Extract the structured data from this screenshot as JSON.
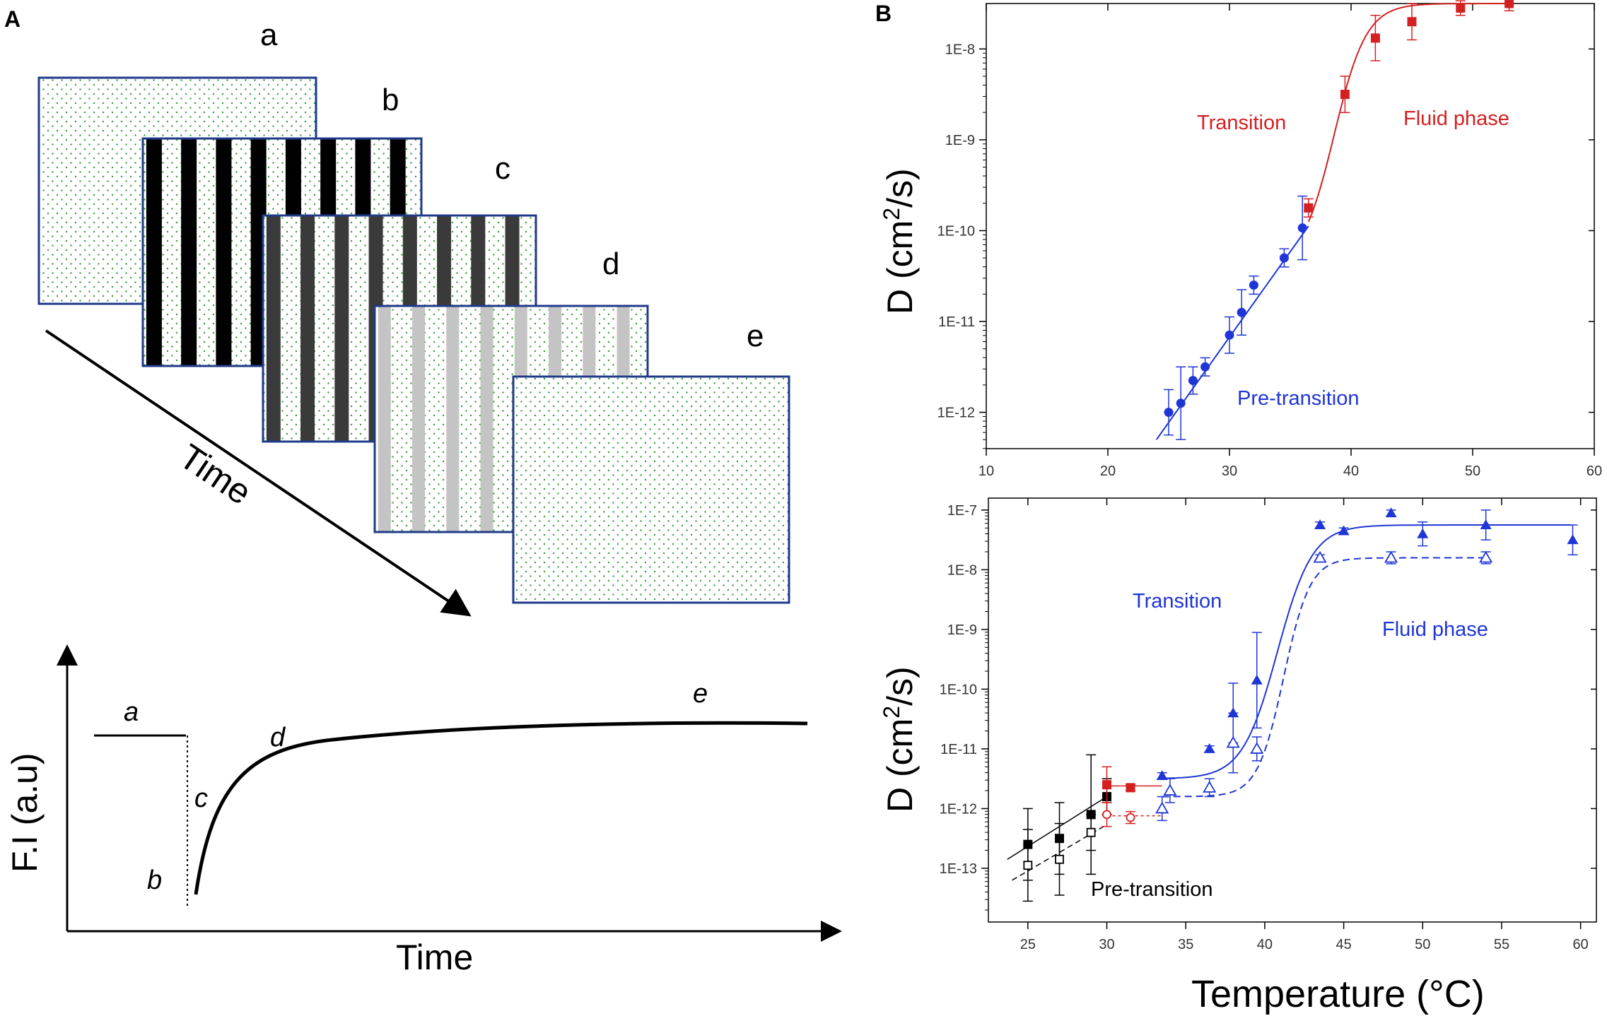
{
  "panel_labels": {
    "A": "A",
    "B": "B"
  },
  "frames": {
    "labels": [
      "a",
      "b",
      "c",
      "d",
      "e"
    ],
    "time_label": "Time",
    "stripe_colors": [
      "none",
      "#000000",
      "#3a3a3a",
      "#c4c4c4",
      "none"
    ],
    "dot_color": "#3a9a3a",
    "frame_border": "#1f3a8a"
  },
  "fi_curve": {
    "ylabel": "F.I (a.u)",
    "xlabel": "Time",
    "point_labels": [
      "a",
      "b",
      "c",
      "d",
      "e"
    ]
  },
  "chart_data": [
    {
      "type": "scatter",
      "title": "",
      "xlabel": "",
      "ylabel_main": "D (cm",
      "ylabel_sup": "2",
      "ylabel_tail": "/s)",
      "xlim": [
        10,
        60
      ],
      "ylim_log10": [
        -12.4,
        -7.5
      ],
      "xticks": [
        10,
        20,
        30,
        40,
        50,
        60
      ],
      "xtick_labels": [
        "10",
        "20",
        "30",
        "40",
        "50",
        "60"
      ],
      "yticks_log10": [
        -12,
        -11,
        -10,
        -9,
        -8
      ],
      "ytick_labels": [
        "1E-12",
        "1E-11",
        "1E-10",
        "1E-9",
        "1E-8"
      ],
      "series": [
        {
          "name": "Pre-transition",
          "color": "#1f35d6",
          "marker": "circle",
          "x": [
            25,
            26,
            27,
            28,
            30,
            31,
            32,
            34.5,
            36
          ],
          "y_log10": [
            -12.0,
            -11.9,
            -11.65,
            -11.5,
            -11.15,
            -10.9,
            -10.6,
            -10.3,
            -9.97
          ],
          "err_log10": [
            0.25,
            0.4,
            0.15,
            0.1,
            0.2,
            0.25,
            0.1,
            0.1,
            0.35
          ],
          "fit_x": [
            24,
            36.5
          ],
          "fit_log10": [
            -12.3,
            -9.95
          ]
        },
        {
          "name": "Fluid phase",
          "color": "#d42020",
          "marker": "square",
          "x": [
            36.5,
            39.5,
            42,
            45,
            49,
            53
          ],
          "y_log10": [
            -9.75,
            -8.5,
            -7.88,
            -7.7,
            -7.55,
            -7.5
          ],
          "err_log10": [
            0.1,
            0.2,
            0.25,
            0.2,
            0.08,
            0.08
          ],
          "fit": "sigmoid"
        }
      ],
      "annotations": [
        {
          "text": "Transition",
          "color": "#d42020"
        },
        {
          "text": "Fluid phase",
          "color": "#d42020"
        },
        {
          "text": "Pre-transition",
          "color": "#1f35d6"
        }
      ]
    },
    {
      "type": "scatter",
      "title": "",
      "xlabel": "Temperature (°C)",
      "xlabel_main": "Temperature (",
      "xlabel_unit": "°C)",
      "ylabel_main": "D (cm",
      "ylabel_sup": "2",
      "ylabel_tail": "/s)",
      "xlim": [
        22.5,
        61
      ],
      "ylim_log10": [
        -13.9,
        -6.8
      ],
      "xticks": [
        25,
        30,
        35,
        40,
        45,
        50,
        55,
        60
      ],
      "xtick_labels": [
        "25",
        "30",
        "35",
        "40",
        "45",
        "50",
        "55",
        "60"
      ],
      "yticks_log10": [
        -13,
        -12,
        -11,
        -10,
        -9,
        -8,
        -7
      ],
      "ytick_labels": [
        "1E-13",
        "1E-12",
        "1E-11",
        "1E-10",
        "1E-9",
        "1E-8",
        "1E-7"
      ],
      "series": [
        {
          "name": "Black filled",
          "color": "#000000",
          "marker": "square_filled",
          "x": [
            25,
            27,
            29,
            30
          ],
          "y_log10": [
            -12.6,
            -12.5,
            -12.1,
            -11.8
          ],
          "err_log10": [
            0.6,
            0.6,
            1.0,
            0.3
          ]
        },
        {
          "name": "Black open",
          "color": "#000000",
          "marker": "square_open",
          "x": [
            25,
            27,
            29
          ],
          "y_log10": [
            -12.95,
            -12.85,
            -12.4
          ],
          "err_log10": [
            0.6,
            0.6,
            0.3
          ]
        },
        {
          "name": "Red filled",
          "color": "#d42020",
          "marker": "square_filled",
          "x": [
            30,
            31.5
          ],
          "y_log10": [
            -11.6,
            -11.65
          ],
          "err_log10": [
            0.3,
            0.05
          ]
        },
        {
          "name": "Red open",
          "color": "#d42020",
          "marker": "circle_open",
          "x": [
            30,
            31.5
          ],
          "y_log10": [
            -12.1,
            -12.15
          ],
          "err_log10": [
            0.2,
            0.1
          ]
        },
        {
          "name": "Blue filled",
          "color": "#1f35d6",
          "marker": "triangle_filled",
          "x": [
            33.5,
            36.5,
            38,
            39.5,
            43.5,
            45,
            48,
            50,
            54,
            59.5
          ],
          "y_log10": [
            -11.45,
            -11.0,
            -10.4,
            -9.85,
            -7.25,
            -7.35,
            -7.05,
            -7.4,
            -7.25,
            -7.5
          ],
          "err_log10": [
            0.05,
            0.05,
            0.5,
            0.8,
            0.05,
            0.05,
            0.05,
            0.2,
            0.25,
            0.25
          ],
          "fit": "sigmoid"
        },
        {
          "name": "Blue open",
          "color": "#1f35d6",
          "marker": "triangle_open",
          "x": [
            33.5,
            34,
            36.5,
            38,
            39.5,
            43.5,
            48,
            54
          ],
          "y_log10": [
            -12.0,
            -11.7,
            -11.65,
            -10.9,
            -11.0,
            -7.8,
            -7.8,
            -7.8
          ],
          "err_log10": [
            0.2,
            0.2,
            0.15,
            0.5,
            0.2,
            0.05,
            0.1,
            0.1
          ],
          "fit": "sigmoid_dashed"
        }
      ],
      "annotations": [
        {
          "text": "Transition",
          "color": "#1f35d6"
        },
        {
          "text": "Fluid phase",
          "color": "#1f35d6"
        },
        {
          "text": "Pre-transition",
          "color": "#000000"
        }
      ]
    }
  ]
}
